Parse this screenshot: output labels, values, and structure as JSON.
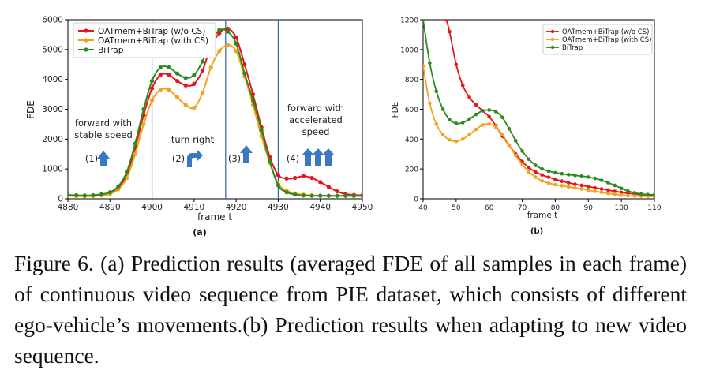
{
  "caption": "Figure 6. (a) Prediction results (averaged FDE of all samples in each frame) of continuous video sequence from PIE dataset, which consists of different ego-vehicle’s movements.(b) Prediction results when adapting to new video sequence.",
  "chart_data": [
    {
      "type": "line",
      "panel_label": "(a)",
      "xlabel": "frame t",
      "ylabel": "FDE",
      "xlim": [
        4880,
        4950
      ],
      "ylim": [
        0,
        6000
      ],
      "xticks": [
        4880,
        4890,
        4900,
        4910,
        4920,
        4930,
        4940,
        4950
      ],
      "yticks": [
        0,
        1000,
        2000,
        3000,
        4000,
        5000,
        6000
      ],
      "grid": false,
      "legend_position": "top-left",
      "vlines": [
        4900,
        4917.5,
        4930
      ],
      "annotations": [
        {
          "text": "forward with\nstable speed",
          "num": "(1)",
          "arrow": "up"
        },
        {
          "text": "turn right",
          "num": "(2)",
          "arrow": "turn-right"
        },
        {
          "text": "",
          "num": "(3)",
          "arrow": "up"
        },
        {
          "text": "forward with\naccelerated\nspeed",
          "num": "(4)",
          "arrow": "up-triple"
        }
      ],
      "series": [
        {
          "name": "OATmem+BiTrap (w/o CS)",
          "color": "#e8141a",
          "x": [
            4880,
            4882,
            4884,
            4886,
            4888,
            4890,
            4892,
            4894,
            4896,
            4898,
            4900,
            4902,
            4904,
            4906,
            4908,
            4910,
            4912,
            4914,
            4916,
            4918,
            4920,
            4922,
            4924,
            4926,
            4928,
            4930,
            4932,
            4934,
            4936,
            4938,
            4940,
            4942,
            4944,
            4946,
            4948,
            4950
          ],
          "values": [
            120,
            110,
            100,
            110,
            140,
            200,
            380,
            800,
            1700,
            2800,
            3700,
            4150,
            4150,
            3950,
            3800,
            3850,
            4300,
            5100,
            5550,
            5700,
            5400,
            4500,
            3500,
            2400,
            1400,
            800,
            680,
            700,
            760,
            700,
            560,
            400,
            250,
            160,
            130,
            120
          ]
        },
        {
          "name": "OATmem+BiTrap (with CS)",
          "color": "#f5a21b",
          "x": [
            4880,
            4882,
            4884,
            4886,
            4888,
            4890,
            4892,
            4894,
            4896,
            4898,
            4900,
            4902,
            4904,
            4906,
            4908,
            4910,
            4912,
            4914,
            4916,
            4918,
            4920,
            4922,
            4924,
            4926,
            4928,
            4930,
            4932,
            4934,
            4936,
            4938,
            4940,
            4942,
            4944,
            4946,
            4948,
            4950
          ],
          "values": [
            100,
            90,
            85,
            90,
            110,
            160,
            320,
            700,
            1500,
            2500,
            3300,
            3650,
            3650,
            3400,
            3150,
            3050,
            3550,
            4400,
            4950,
            5150,
            4950,
            4100,
            3150,
            2100,
            1200,
            500,
            280,
            180,
            140,
            120,
            110,
            100,
            100,
            100,
            95,
            95
          ]
        },
        {
          "name": "BiTrap",
          "color": "#2a8a1f",
          "x": [
            4880,
            4882,
            4884,
            4886,
            4888,
            4890,
            4892,
            4894,
            4896,
            4898,
            4900,
            4902,
            4904,
            4906,
            4908,
            4910,
            4912,
            4914,
            4916,
            4918,
            4920,
            4922,
            4924,
            4926,
            4928,
            4930,
            4932,
            4934,
            4936,
            4938,
            4940,
            4942,
            4944,
            4946,
            4948,
            4950
          ],
          "values": [
            130,
            120,
            110,
            120,
            150,
            220,
            420,
            900,
            1850,
            3000,
            3950,
            4400,
            4400,
            4200,
            4050,
            4150,
            4600,
            5250,
            5650,
            5600,
            5200,
            4200,
            3300,
            2300,
            1250,
            450,
            220,
            140,
            110,
            100,
            100,
            100,
            100,
            100,
            100,
            100
          ]
        }
      ]
    },
    {
      "type": "line",
      "panel_label": "(b)",
      "xlabel": "frame t",
      "ylabel": "FDE",
      "xlim": [
        40,
        110
      ],
      "ylim": [
        0,
        1200
      ],
      "xticks": [
        40,
        50,
        60,
        70,
        80,
        90,
        100,
        110
      ],
      "yticks": [
        0,
        200,
        400,
        600,
        800,
        1000,
        1200
      ],
      "grid": false,
      "legend_position": "top-right",
      "series": [
        {
          "name": "OATmem+BiTrap (w/o CS)",
          "color": "#e8141a",
          "x": [
            47,
            48,
            50,
            52,
            54,
            56,
            58,
            60,
            62,
            64,
            66,
            68,
            70,
            72,
            74,
            76,
            78,
            80,
            82,
            84,
            86,
            88,
            90,
            92,
            94,
            96,
            98,
            100,
            102,
            104,
            106,
            108,
            110
          ],
          "values": [
            1200,
            1120,
            900,
            760,
            680,
            630,
            590,
            550,
            490,
            420,
            360,
            300,
            250,
            210,
            180,
            160,
            145,
            130,
            118,
            108,
            98,
            90,
            82,
            74,
            66,
            58,
            50,
            43,
            37,
            32,
            28,
            24,
            22
          ]
        },
        {
          "name": "OATmem+BiTrap (with CS)",
          "color": "#f5a21b",
          "x": [
            40,
            42,
            44,
            46,
            48,
            50,
            52,
            54,
            56,
            58,
            60,
            62,
            64,
            66,
            68,
            70,
            72,
            74,
            76,
            78,
            80,
            82,
            84,
            86,
            88,
            90,
            92,
            94,
            96,
            98,
            100,
            102,
            104,
            106,
            108,
            110
          ],
          "values": [
            890,
            640,
            500,
            430,
            395,
            385,
            400,
            430,
            465,
            495,
            500,
            480,
            430,
            360,
            290,
            230,
            180,
            145,
            120,
            105,
            95,
            88,
            80,
            73,
            66,
            58,
            50,
            43,
            36,
            30,
            25,
            21,
            19,
            18,
            17,
            16
          ]
        },
        {
          "name": "BiTrap",
          "color": "#2a8a1f",
          "x": [
            40,
            42,
            44,
            46,
            48,
            50,
            52,
            54,
            56,
            58,
            60,
            62,
            64,
            66,
            68,
            70,
            72,
            74,
            76,
            78,
            80,
            82,
            84,
            86,
            88,
            90,
            92,
            94,
            96,
            98,
            100,
            102,
            104,
            106,
            108,
            110
          ],
          "values": [
            1200,
            910,
            720,
            600,
            530,
            505,
            510,
            535,
            565,
            590,
            595,
            585,
            545,
            470,
            390,
            320,
            265,
            225,
            200,
            185,
            175,
            168,
            162,
            157,
            152,
            146,
            137,
            124,
            108,
            90,
            70,
            52,
            40,
            32,
            28,
            27
          ]
        }
      ]
    }
  ]
}
